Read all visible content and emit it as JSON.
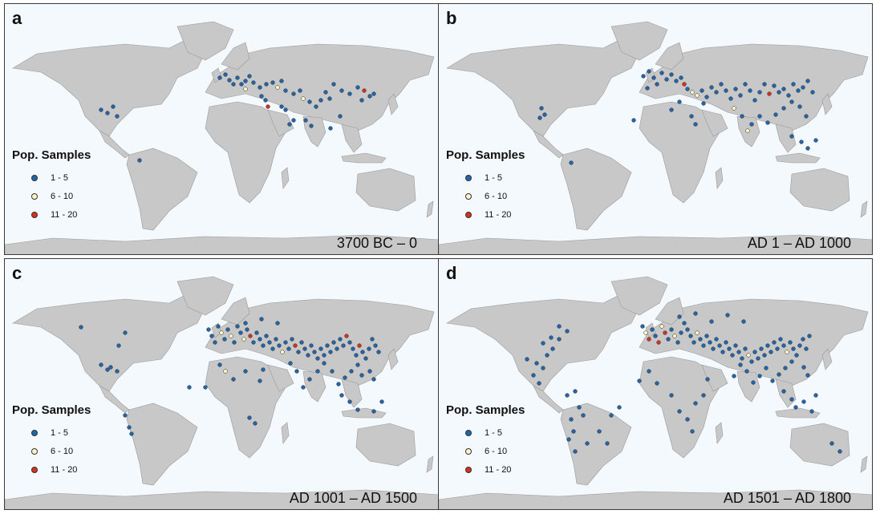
{
  "legend": {
    "title": "Pop. Samples",
    "items": [
      {
        "label": "1 - 5",
        "color": "#2166ac"
      },
      {
        "label": "6 - 10",
        "color": "#fff7c8"
      },
      {
        "label": "11 - 20",
        "color": "#d7301f"
      }
    ]
  },
  "colors": {
    "ocean": "#f4f9fd",
    "land": "#c8c8c8",
    "coast": "#9a9a9a",
    "border": "#3a3a3a"
  },
  "panels": [
    {
      "letter": "a",
      "period": "3700 BC – 0"
    },
    {
      "letter": "b",
      "period": "AD 1 – AD 1000"
    },
    {
      "letter": "c",
      "period": "AD 1001 – AD 1500"
    },
    {
      "letter": "d",
      "period": "AD 1501 – AD 1800"
    }
  ]
}
